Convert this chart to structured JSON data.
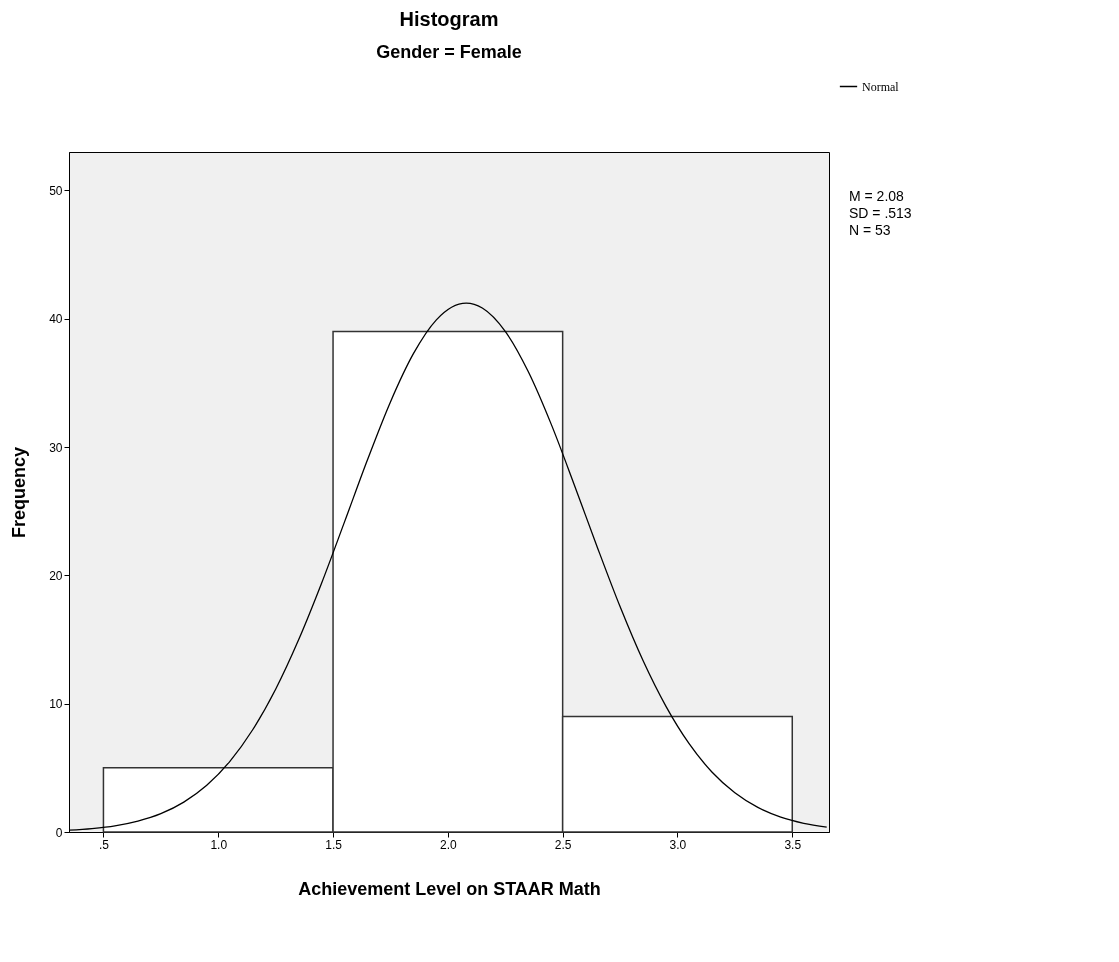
{
  "chart_data": {
    "type": "histogram",
    "title": "Histogram",
    "subtitle": "Gender = Female",
    "xlabel": "Achievement Level on STAAR Math",
    "ylabel": "Frequency",
    "bins": [
      0.5,
      1.5,
      2.5,
      3.5
    ],
    "values": [
      5,
      39,
      9
    ],
    "color": "#ffffff",
    "series": [
      {
        "name": "Normal",
        "type": "line",
        "color": "#000000",
        "line_style": "solid",
        "x": [
          0.35,
          0.45,
          0.55,
          0.65,
          0.75,
          0.85,
          0.95,
          1.05,
          1.15,
          1.25,
          1.35,
          1.45,
          1.55,
          1.65,
          1.75,
          1.85,
          1.95,
          2.08,
          2.15,
          2.25,
          2.35,
          2.45,
          2.55,
          2.65,
          2.75,
          2.85,
          2.95,
          3.05,
          3.15,
          3.25,
          3.35,
          3.45,
          3.55,
          3.65
        ],
        "values": [
          0.14,
          0.27,
          0.48,
          0.85,
          1.43,
          2.33,
          3.64,
          5.49,
          7.97,
          11.13,
          14.98,
          19.39,
          24.17,
          29.01,
          33.52,
          37.28,
          39.92,
          41.22,
          40.84,
          39.02,
          35.89,
          31.79,
          27.09,
          22.24,
          17.57,
          13.36,
          9.79,
          6.9,
          4.68,
          3.06,
          1.92,
          1.16,
          0.68,
          0.38
        ]
      }
    ],
    "xlim": [
      0.35,
      3.66
    ],
    "ylim": [
      0,
      53
    ],
    "xticks": [
      {
        "value": 0.5,
        "label": ".5"
      },
      {
        "value": 1,
        "label": "1.0"
      },
      {
        "value": 1.5,
        "label": "1.5"
      },
      {
        "value": 2,
        "label": "2.0"
      },
      {
        "value": 2.5,
        "label": "2.5"
      },
      {
        "value": 3,
        "label": "3.0"
      },
      {
        "value": 3.5,
        "label": "3.5"
      }
    ],
    "yticks": [
      0,
      10,
      20,
      30,
      40,
      50
    ],
    "grid": false,
    "legend": "top right",
    "annotations": [
      "M = 2.08",
      "SD = .513",
      "N = 53"
    ]
  }
}
